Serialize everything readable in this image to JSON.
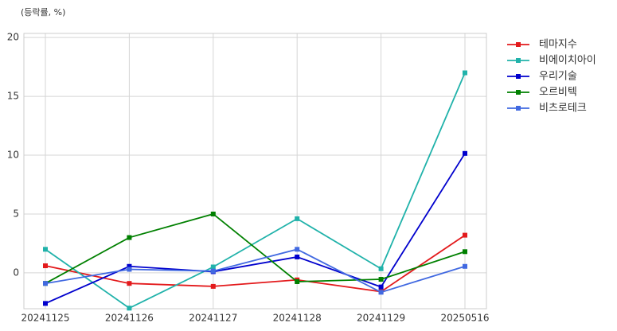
{
  "chart_data": {
    "type": "line",
    "y_label": "(등락률, %)",
    "categories": [
      "20241125",
      "20241126",
      "20241127",
      "20241128",
      "20241129",
      "20250516"
    ],
    "series": [
      {
        "name": "테마지수",
        "color": "#e31a1c",
        "values": [
          0.6,
          -0.9,
          -1.15,
          -0.6,
          -1.6,
          3.2
        ]
      },
      {
        "name": "비에이치아이",
        "color": "#20b2aa",
        "values": [
          2.0,
          -3.0,
          0.5,
          4.6,
          0.35,
          17.0
        ]
      },
      {
        "name": "우리기술",
        "color": "#0000cd",
        "values": [
          -2.6,
          0.55,
          0.1,
          1.35,
          -1.2,
          10.15
        ]
      },
      {
        "name": "오르비텍",
        "color": "#008000",
        "values": [
          -0.9,
          3.0,
          5.0,
          -0.75,
          -0.55,
          1.8
        ]
      },
      {
        "name": "비츠로테크",
        "color": "#4169e1",
        "values": [
          -0.9,
          0.3,
          0.15,
          2.0,
          -1.65,
          0.55
        ]
      }
    ],
    "ylim": [
      -3.05,
      20.35
    ],
    "yticks": [
      0,
      5,
      10,
      15,
      20
    ],
    "grid": true,
    "legend": "outside-right",
    "marker": "square"
  }
}
